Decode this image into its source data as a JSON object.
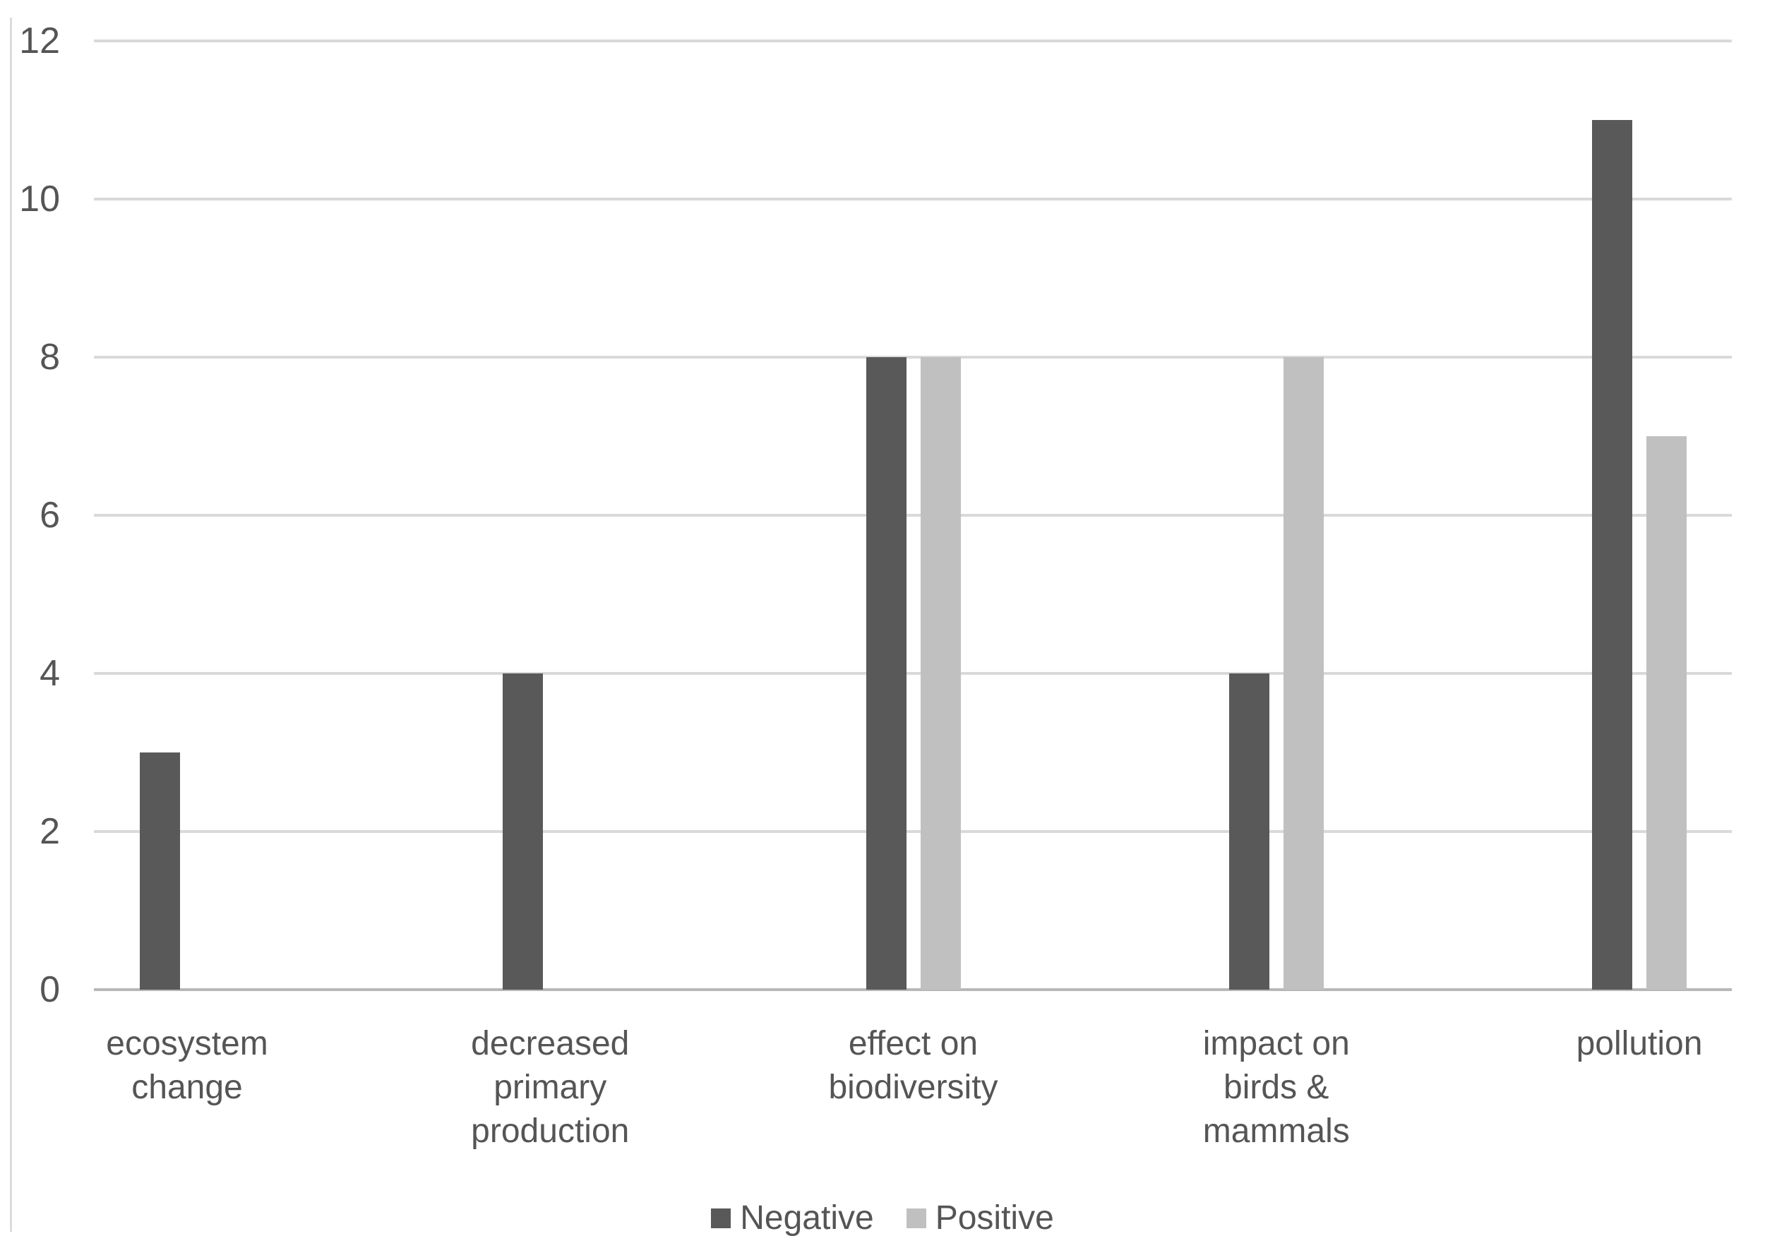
{
  "figure": {
    "background": "#ffffff",
    "left_border_color": "#dcdcdc"
  },
  "chart_data": {
    "type": "bar",
    "title": "",
    "xlabel": "",
    "ylabel": "",
    "categories": [
      "ecosystem change",
      "decreased primary production",
      "effect on biodiversity",
      "impact on birds & mammals",
      "pollution"
    ],
    "category_label_lines": [
      [
        "ecosystem",
        "change"
      ],
      [
        "decreased",
        "primary",
        "production"
      ],
      [
        "effect on",
        "biodiversity"
      ],
      [
        "impact on",
        "birds &",
        "mammals"
      ],
      [
        "pollution"
      ]
    ],
    "series": [
      {
        "name": "Negative",
        "values": [
          3,
          4,
          8,
          4,
          11
        ],
        "color": "#595959"
      },
      {
        "name": "Positive",
        "values": [
          0,
          0,
          8,
          8,
          7
        ],
        "color": "#c0c0c0"
      }
    ],
    "y_ticks": [
      0,
      2,
      4,
      6,
      8,
      10,
      12
    ],
    "ylim": [
      0,
      12
    ],
    "grid": "horizontal",
    "gridline_color": "#d9d9d9",
    "axis_line_color": "#b7b7b7",
    "text_color": "#555555",
    "legend_position": "bottom-center"
  }
}
